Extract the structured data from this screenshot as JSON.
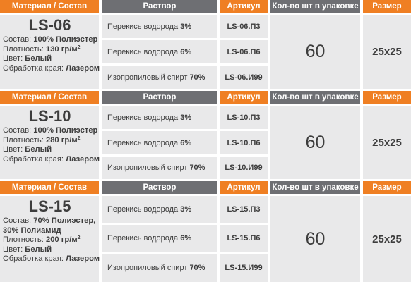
{
  "headers": {
    "material": "Материал / Состав",
    "solution": "Раствор",
    "article": "Артикул",
    "quantity": "Кол-во шт в упаковке",
    "size": "Размер"
  },
  "labels": {
    "composition": "Состав:",
    "density": "Плотность:",
    "color": "Цвет:",
    "edge": "Обработка края:",
    "density_unit": "гр/м",
    "density_sup": "2"
  },
  "products": [
    {
      "model": "LS-06",
      "composition": "100% Полиэстер",
      "composition_2": "",
      "density_value": "130",
      "color": "Белый",
      "edge": "Лазером",
      "quantity": "60",
      "size": "25x25",
      "rows": [
        {
          "solution": "Перекись водорода",
          "percent": "3%",
          "article": "LS-06.П3"
        },
        {
          "solution": "Перекись водорода",
          "percent": "6%",
          "article": "LS-06.П6"
        },
        {
          "solution": "Изопропиловый спирт",
          "percent": "70%",
          "article": "LS-06.И99"
        }
      ]
    },
    {
      "model": "LS-10",
      "composition": "100% Полиэстер",
      "composition_2": "",
      "density_value": "280",
      "color": "Белый",
      "edge": "Лазером",
      "quantity": "60",
      "size": "25x25",
      "rows": [
        {
          "solution": "Перекись водорода",
          "percent": "3%",
          "article": "LS-10.П3"
        },
        {
          "solution": "Перекись водорода",
          "percent": "6%",
          "article": "LS-10.П6"
        },
        {
          "solution": "Изопропиловый спирт",
          "percent": "70%",
          "article": "LS-10.И99"
        }
      ]
    },
    {
      "model": "LS-15",
      "composition": "70% Полиэстер,",
      "composition_2": "30% Полиамид",
      "density_value": "200",
      "color": "Белый",
      "edge": "Лазером",
      "quantity": "60",
      "size": "25x25",
      "rows": [
        {
          "solution": "Перекись водорода",
          "percent": "3%",
          "article": "LS-15.П3"
        },
        {
          "solution": "Перекись водорода",
          "percent": "6%",
          "article": "LS-15.П6"
        },
        {
          "solution": "Изопропиловый спирт",
          "percent": "70%",
          "article": "LS-15.И99"
        }
      ]
    }
  ],
  "colors": {
    "header_orange": "#ef7f23",
    "header_gray": "#6e6f73",
    "cell_bg": "#e9e9ea",
    "text": "#3d3d3d"
  }
}
